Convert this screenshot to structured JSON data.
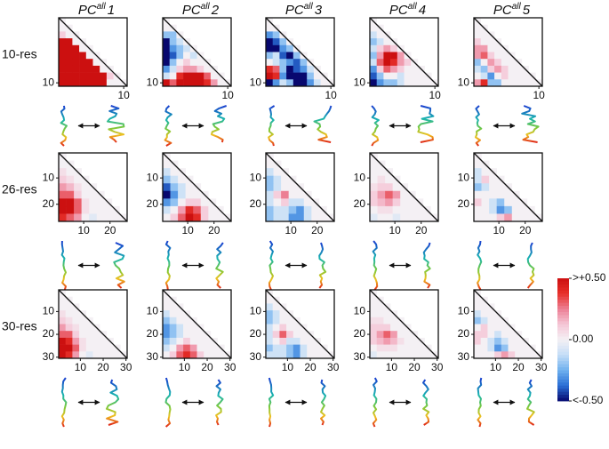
{
  "columns": [
    {
      "base": "PC",
      "sup": "all",
      "index": "1"
    },
    {
      "base": "PC",
      "sup": "all",
      "index": "2"
    },
    {
      "base": "PC",
      "sup": "all",
      "index": "3"
    },
    {
      "base": "PC",
      "sup": "all",
      "index": "4"
    },
    {
      "base": "PC",
      "sup": "all",
      "index": "5"
    }
  ],
  "rows": [
    {
      "label": "10-res",
      "lim": [
        0.5,
        10.5
      ],
      "yticks": [
        10
      ],
      "xticks": [
        10
      ],
      "maps": [
        [
          [
            0
          ],
          [
            0,
            0
          ],
          [
            0.1,
            0,
            0
          ],
          [
            0.5,
            0.5,
            0,
            0
          ],
          [
            0.5,
            0.5,
            0.5,
            0,
            0
          ],
          [
            0.5,
            0.5,
            0.5,
            0.5,
            0,
            0
          ],
          [
            0.5,
            0.5,
            0.5,
            0.5,
            0.5,
            0,
            0
          ],
          [
            0.5,
            0.5,
            0.5,
            0.5,
            0.5,
            0.5,
            0,
            0
          ],
          [
            0.5,
            0.5,
            0.5,
            0.5,
            0.5,
            0.5,
            0.5,
            0.1,
            0
          ],
          [
            0.5,
            0.5,
            0.5,
            0.5,
            0.5,
            0.5,
            0.5,
            0,
            0,
            0
          ]
        ],
        [
          [
            0
          ],
          [
            0,
            0
          ],
          [
            -0.2,
            -0.2,
            0
          ],
          [
            -0.6,
            -0.2,
            -0.1,
            0
          ],
          [
            -0.6,
            -0.3,
            -0.2,
            -0.1,
            0
          ],
          [
            -0.6,
            -0.4,
            -0.2,
            0,
            -0.1,
            0
          ],
          [
            -0.6,
            -0.2,
            0,
            0.1,
            0,
            0,
            0
          ],
          [
            -0.3,
            -0.1,
            0.1,
            0.2,
            0.2,
            0.1,
            0,
            0
          ],
          [
            -0.1,
            0,
            0.4,
            0.5,
            0.5,
            0.5,
            0.3,
            0,
            0
          ],
          [
            0.5,
            0.3,
            0.5,
            0.5,
            0.5,
            0.5,
            0.4,
            0.2,
            0,
            0
          ]
        ],
        [
          [
            0
          ],
          [
            0,
            0
          ],
          [
            -0.3,
            -0.2,
            0
          ],
          [
            -0.6,
            -0.4,
            -0.2,
            0
          ],
          [
            -0.6,
            -0.6,
            -0.3,
            -0.2,
            0
          ],
          [
            -0.2,
            -0.1,
            -0.4,
            -0.5,
            -0.2,
            0
          ],
          [
            0,
            -0.1,
            -0.2,
            -0.3,
            -0.4,
            -0.2,
            0
          ],
          [
            0.4,
            0.3,
            -0.2,
            -0.6,
            -0.4,
            -0.3,
            -0.1,
            0
          ],
          [
            0.5,
            0.4,
            -0.3,
            -0.6,
            -0.6,
            -0.5,
            -0.2,
            0,
            0
          ],
          [
            -0.6,
            -0.3,
            -0.1,
            -0.2,
            -0.6,
            -0.6,
            -0.3,
            -0.1,
            0,
            0
          ]
        ],
        [
          [
            0
          ],
          [
            0,
            0
          ],
          [
            -0.1,
            0,
            0
          ],
          [
            -0.2,
            -0.1,
            0,
            0
          ],
          [
            -0.1,
            0.1,
            0.2,
            0.1,
            0
          ],
          [
            -0.2,
            0.2,
            0.5,
            0.6,
            0.2,
            0
          ],
          [
            -0.1,
            0.3,
            0.5,
            0.4,
            0.2,
            0.1,
            0
          ],
          [
            -0.3,
            0.1,
            0.3,
            0.2,
            0.1,
            0,
            0,
            0
          ],
          [
            -0.4,
            -0.2,
            0,
            0,
            -0.1,
            0,
            0,
            0,
            0
          ],
          [
            -0.6,
            -0.3,
            -0.2,
            -0.2,
            -0.1,
            0,
            0,
            0,
            0,
            0
          ]
        ],
        [
          [
            0
          ],
          [
            0,
            0
          ],
          [
            0,
            0,
            0
          ],
          [
            0.1,
            0,
            0,
            0
          ],
          [
            0.2,
            0.2,
            0,
            0,
            0
          ],
          [
            0.2,
            0.3,
            0.1,
            0,
            0,
            0
          ],
          [
            -0.2,
            0,
            0.2,
            0.1,
            0,
            0,
            0
          ],
          [
            -0.1,
            -0.2,
            0.1,
            0.2,
            0.1,
            0,
            0,
            0
          ],
          [
            0,
            -0.1,
            -0.3,
            0,
            0.1,
            0,
            0,
            0,
            0
          ],
          [
            0.2,
            0.4,
            -0.2,
            -0.2,
            0,
            0,
            0,
            0,
            0,
            0
          ]
        ]
      ]
    },
    {
      "label": "26-res",
      "lim": [
        0.5,
        26.5
      ],
      "yticks": [
        10,
        20
      ],
      "xticks": [
        10,
        20
      ],
      "maps": [
        [
          [
            0
          ],
          [
            0,
            0
          ],
          [
            0.05,
            0,
            0
          ],
          [
            0.1,
            0.05,
            0,
            0
          ],
          [
            0.2,
            0.15,
            0.05,
            0,
            0
          ],
          [
            0.3,
            0.3,
            0.1,
            0,
            0,
            0
          ],
          [
            0.5,
            0.5,
            0.3,
            0.05,
            0,
            0,
            0
          ],
          [
            0.6,
            0.5,
            0.3,
            0.05,
            0,
            0,
            0,
            0
          ],
          [
            0.4,
            0.3,
            0.2,
            0,
            -0.05,
            0,
            0,
            0,
            0
          ]
        ],
        [
          [
            0
          ],
          [
            0,
            0
          ],
          [
            -0.1,
            0,
            0
          ],
          [
            -0.2,
            -0.1,
            0,
            0
          ],
          [
            -0.4,
            -0.2,
            -0.1,
            0,
            0
          ],
          [
            -0.5,
            -0.3,
            -0.1,
            0,
            0,
            0
          ],
          [
            -0.3,
            -0.2,
            0,
            0.1,
            0.1,
            0,
            0
          ],
          [
            -0.1,
            0,
            0.2,
            0.4,
            0.3,
            0.1,
            0,
            0
          ],
          [
            0,
            0.1,
            0.3,
            0.5,
            0.4,
            0.1,
            0,
            0,
            0
          ]
        ],
        [
          [
            0
          ],
          [
            0,
            0
          ],
          [
            -0.1,
            0,
            0
          ],
          [
            -0.2,
            -0.1,
            0,
            0
          ],
          [
            -0.2,
            -0.1,
            0,
            0,
            0
          ],
          [
            -0.1,
            0.1,
            0.25,
            0,
            0,
            0
          ],
          [
            -0.1,
            0,
            0.1,
            -0.1,
            -0.1,
            0,
            0
          ],
          [
            -0.2,
            -0.1,
            -0.1,
            -0.2,
            -0.3,
            -0.1,
            0,
            0
          ],
          [
            -0.2,
            -0.1,
            -0.1,
            -0.3,
            -0.3,
            -0.1,
            0,
            0,
            0
          ]
        ],
        [
          [
            0
          ],
          [
            0,
            0
          ],
          [
            0,
            0,
            0
          ],
          [
            0,
            0.05,
            0,
            0
          ],
          [
            0.05,
            0.1,
            0.1,
            0,
            0
          ],
          [
            0.1,
            0.2,
            0.3,
            0.2,
            0,
            0
          ],
          [
            0.1,
            0.15,
            0.2,
            0.1,
            0,
            0,
            0
          ],
          [
            0,
            0.05,
            0.05,
            0,
            0,
            0,
            0,
            0
          ],
          [
            -0.05,
            0,
            0,
            -0.05,
            0,
            0,
            0,
            0,
            0
          ]
        ],
        [
          [
            0
          ],
          [
            0,
            0
          ],
          [
            -0.1,
            0,
            0
          ],
          [
            -0.1,
            0.1,
            0,
            0
          ],
          [
            -0.2,
            -0.1,
            0,
            0,
            0
          ],
          [
            0,
            0,
            0,
            0,
            0,
            0
          ],
          [
            0.1,
            0,
            -0.1,
            -0.2,
            0,
            0,
            0
          ],
          [
            0,
            0,
            -0.1,
            -0.3,
            -0.2,
            0,
            0,
            0
          ],
          [
            0,
            0,
            0,
            0.1,
            0.2,
            0,
            0,
            0,
            0
          ]
        ]
      ]
    },
    {
      "label": "30-res",
      "lim": [
        0.5,
        30.5
      ],
      "yticks": [
        10,
        20,
        30
      ],
      "xticks": [
        10,
        20,
        30
      ],
      "maps": [
        [
          [
            0
          ],
          [
            0,
            0
          ],
          [
            0,
            0,
            0
          ],
          [
            0.05,
            0,
            0,
            0
          ],
          [
            0.1,
            0.05,
            0,
            0,
            0
          ],
          [
            0.2,
            0.1,
            0.05,
            0,
            0,
            0
          ],
          [
            0.3,
            0.3,
            0.1,
            0,
            0,
            0,
            0
          ],
          [
            0.5,
            0.4,
            0.2,
            0.05,
            0,
            0,
            0,
            0
          ],
          [
            0.6,
            0.5,
            0.3,
            0.05,
            0,
            0,
            0,
            0,
            0
          ],
          [
            0.5,
            0.4,
            0.2,
            0,
            -0.05,
            0,
            0,
            0,
            0,
            0
          ]
        ],
        [
          [
            0
          ],
          [
            0,
            0
          ],
          [
            0,
            0,
            0
          ],
          [
            -0.1,
            0,
            0,
            0
          ],
          [
            -0.2,
            -0.1,
            0,
            0,
            0
          ],
          [
            -0.3,
            -0.2,
            -0.1,
            0,
            0,
            0
          ],
          [
            -0.3,
            -0.2,
            -0.1,
            0,
            0,
            0,
            0
          ],
          [
            -0.2,
            -0.1,
            0,
            0.1,
            0,
            0,
            0,
            0
          ],
          [
            -0.1,
            0,
            0.2,
            0.3,
            0.2,
            0,
            0,
            0,
            0
          ],
          [
            0,
            0.1,
            0.3,
            0.4,
            0.3,
            0.1,
            0,
            0,
            0,
            0
          ]
        ],
        [
          [
            0
          ],
          [
            0,
            0
          ],
          [
            -0.1,
            0,
            0
          ],
          [
            -0.2,
            -0.1,
            0,
            0
          ],
          [
            -0.2,
            -0.1,
            0,
            0,
            0
          ],
          [
            -0.1,
            0,
            0.1,
            0,
            0,
            0
          ],
          [
            -0.1,
            0.1,
            0.3,
            0.1,
            0,
            0,
            0
          ],
          [
            -0.1,
            0,
            0.1,
            -0.1,
            -0.1,
            0,
            0,
            0
          ],
          [
            -0.2,
            -0.1,
            -0.1,
            -0.2,
            -0.3,
            -0.1,
            0,
            0,
            0
          ],
          [
            -0.1,
            -0.1,
            -0.1,
            -0.2,
            -0.3,
            -0.1,
            0,
            0,
            0,
            0
          ]
        ],
        [
          [
            0
          ],
          [
            0,
            0
          ],
          [
            0,
            0,
            0
          ],
          [
            0,
            0,
            0,
            0
          ],
          [
            0.05,
            0.05,
            0,
            0,
            0
          ],
          [
            0.1,
            0.1,
            0.1,
            0,
            0,
            0
          ],
          [
            0.1,
            0.2,
            0.3,
            0.2,
            0,
            0,
            0
          ],
          [
            0.1,
            0.15,
            0.2,
            0.15,
            0.05,
            0,
            0,
            0
          ],
          [
            0,
            0.05,
            0.05,
            0.05,
            0,
            0,
            0,
            0,
            0
          ],
          [
            -0.05,
            0,
            0,
            0,
            0,
            0,
            0,
            0,
            0,
            0
          ]
        ],
        [
          [
            0
          ],
          [
            0,
            0
          ],
          [
            0,
            0,
            0
          ],
          [
            -0.1,
            0,
            0,
            0
          ],
          [
            -0.2,
            -0.1,
            0,
            0,
            0
          ],
          [
            0,
            0.1,
            0,
            0,
            0,
            0
          ],
          [
            0.1,
            0.1,
            0,
            -0.1,
            0,
            0,
            0
          ],
          [
            0.1,
            0,
            -0.1,
            -0.2,
            -0.1,
            0,
            0,
            0
          ],
          [
            0,
            0,
            -0.1,
            -0.3,
            -0.2,
            0,
            0,
            0,
            0
          ],
          [
            0,
            0,
            0,
            0.1,
            0.2,
            0.1,
            0,
            0,
            0,
            0
          ]
        ]
      ]
    }
  ],
  "colorbar": {
    "lim": [
      -0.5,
      0.5
    ],
    "ticks": [
      {
        "value": 0.5,
        "label": ">+0.50"
      },
      {
        "value": 0,
        "label": "0.00"
      },
      {
        "value": -0.5,
        "label": "<-0.50"
      }
    ],
    "colors": [
      "#08086e",
      "#2a6fd6",
      "#6fb0ee",
      "#c5def7",
      "#f4f0f4",
      "#f5c6d6",
      "#ec7f94",
      "#e8302a",
      "#cc1010"
    ]
  }
}
